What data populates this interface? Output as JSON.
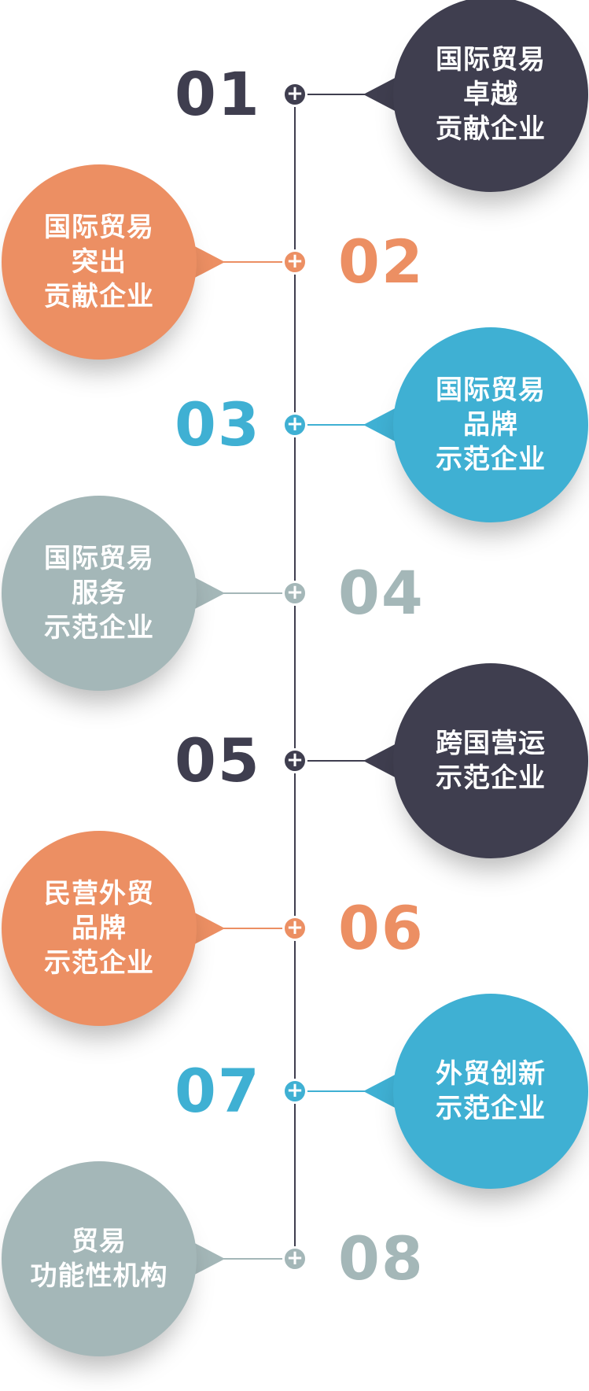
{
  "colors": {
    "dark": "#3f3e4f",
    "orange": "#ec8f63",
    "blue": "#3fb0d3",
    "gray": "#a4b7b8"
  },
  "node_symbol": "+",
  "items": [
    {
      "number": "01",
      "lines": [
        "国际贸易",
        "卓越",
        "贡献企业"
      ],
      "color": "#3f3e4f",
      "side": "right"
    },
    {
      "number": "02",
      "lines": [
        "国际贸易",
        "突出",
        "贡献企业"
      ],
      "color": "#ec8f63",
      "side": "left"
    },
    {
      "number": "03",
      "lines": [
        "国际贸易",
        "品牌",
        "示范企业"
      ],
      "color": "#3fb0d3",
      "side": "right"
    },
    {
      "number": "04",
      "lines": [
        "国际贸易",
        "服务",
        "示范企业"
      ],
      "color": "#a4b7b8",
      "side": "left"
    },
    {
      "number": "05",
      "lines": [
        "跨国营运",
        "示范企业"
      ],
      "color": "#3f3e4f",
      "side": "right"
    },
    {
      "number": "06",
      "lines": [
        "民营外贸",
        "品牌",
        "示范企业"
      ],
      "color": "#ec8f63",
      "side": "left"
    },
    {
      "number": "07",
      "lines": [
        "外贸创新",
        "示范企业"
      ],
      "color": "#3fb0d3",
      "side": "right"
    },
    {
      "number": "08",
      "lines": [
        "贸易",
        "功能性机构"
      ],
      "color": "#a4b7b8",
      "side": "left"
    }
  ]
}
